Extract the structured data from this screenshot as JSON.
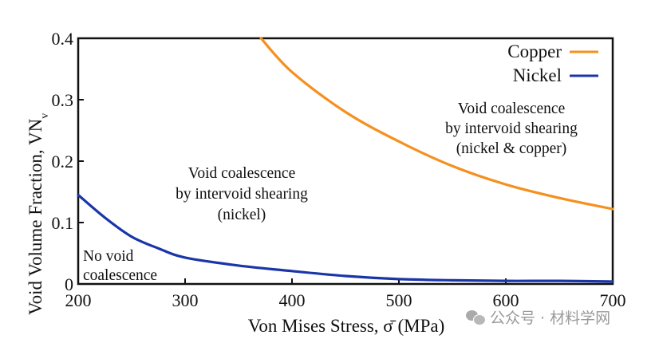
{
  "chart_data": {
    "type": "line",
    "title": "",
    "xlabel": "Von Mises Stress, σ̄ (MPa)",
    "ylabel": "Void Volume Fraction, VN",
    "ylabel_subscript": "v",
    "xlim": [
      200,
      700
    ],
    "ylim": [
      0,
      0.4
    ],
    "xticks": [
      200,
      300,
      400,
      500,
      600,
      700
    ],
    "xtick_labels": [
      "200",
      "300",
      "400",
      "500",
      "600",
      "700"
    ],
    "yticks": [
      0,
      0.1,
      0.2,
      0.3,
      0.4
    ],
    "ytick_labels": [
      "0",
      "0.1",
      "0.2",
      "0.3",
      "0.4"
    ],
    "grid": false,
    "legend_position": "top-right",
    "series": [
      {
        "name": "Copper",
        "color": "#f5901e",
        "x": [
          371,
          400,
          450,
          500,
          550,
          600,
          650,
          700
        ],
        "y": [
          0.4,
          0.345,
          0.28,
          0.232,
          0.192,
          0.162,
          0.14,
          0.122
        ]
      },
      {
        "name": "Nickel",
        "color": "#1a35a8",
        "x": [
          200,
          225,
          250,
          275,
          300,
          350,
          400,
          450,
          500,
          550,
          600,
          650,
          700
        ],
        "y": [
          0.145,
          0.108,
          0.077,
          0.058,
          0.043,
          0.03,
          0.021,
          0.013,
          0.008,
          0.006,
          0.005,
          0.005,
          0.004
        ]
      }
    ],
    "annotations": [
      {
        "id": "no-coalescence",
        "lines": [
          "No void",
          "coalescence"
        ]
      },
      {
        "id": "nickel-region",
        "lines": [
          "Void coalescence",
          "by intervoid shearing",
          "(nickel)"
        ]
      },
      {
        "id": "both-region",
        "lines": [
          "Void coalescence",
          "by intervoid shearing",
          "(nickel & copper)"
        ]
      }
    ]
  },
  "watermark": {
    "text": "公众号 · 材料学网"
  }
}
